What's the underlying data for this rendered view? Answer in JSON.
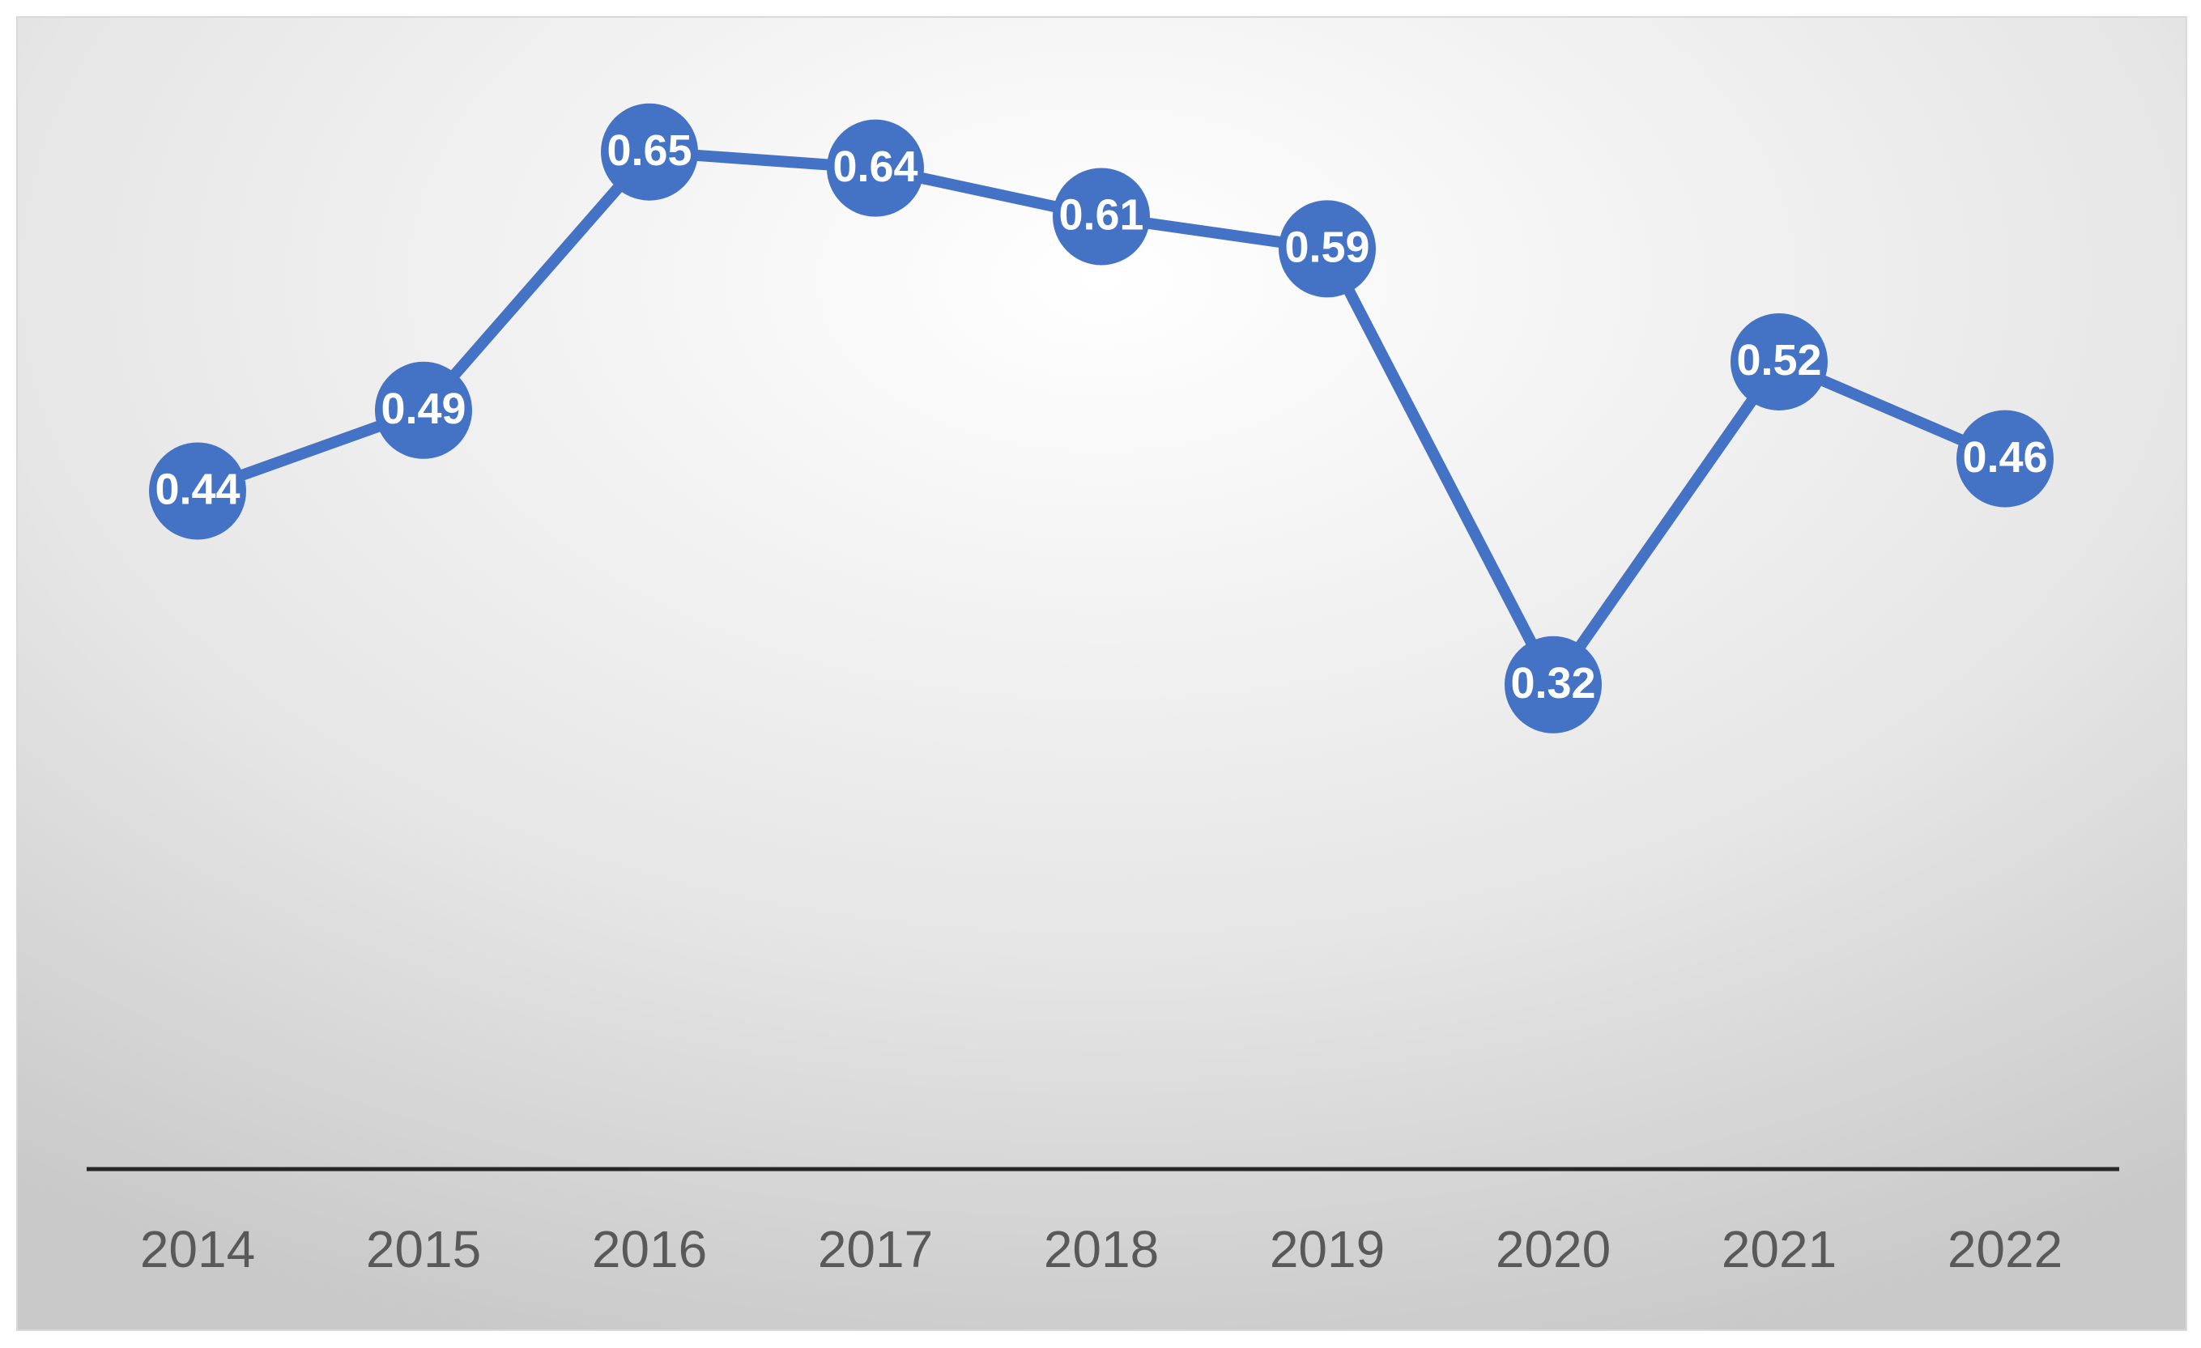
{
  "chart_data": {
    "type": "line",
    "categories": [
      "2014",
      "2015",
      "2016",
      "2017",
      "2018",
      "2019",
      "2020",
      "2021",
      "2022"
    ],
    "values": [
      0.44,
      0.49,
      0.65,
      0.64,
      0.61,
      0.59,
      0.32,
      0.52,
      0.46
    ],
    "color": "#4472c4",
    "ylim": [
      0.02,
      0.7
    ]
  }
}
